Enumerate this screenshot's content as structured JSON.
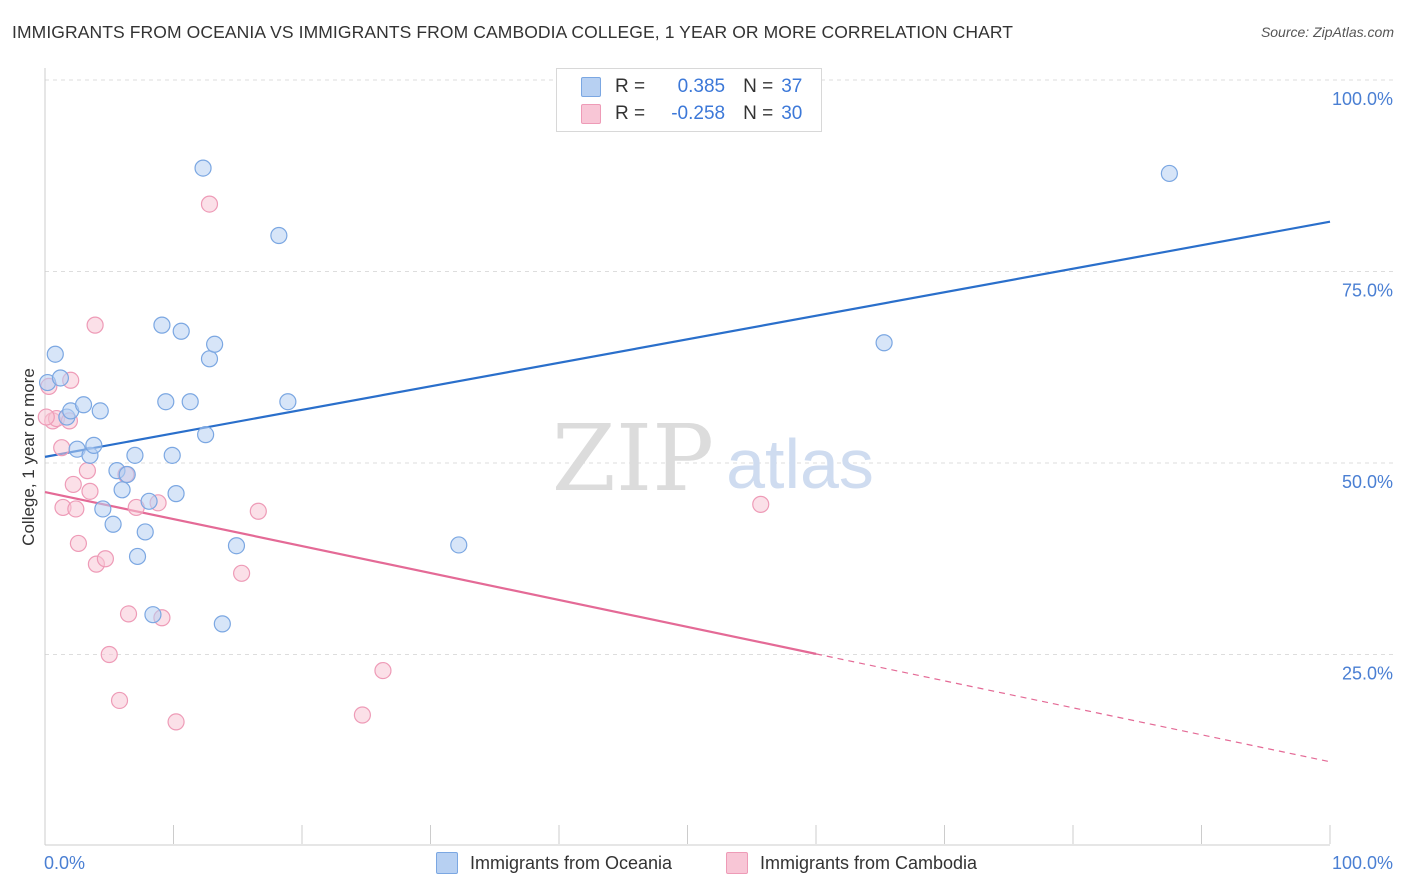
{
  "title": "IMMIGRANTS FROM OCEANIA VS IMMIGRANTS FROM CAMBODIA COLLEGE, 1 YEAR OR MORE CORRELATION CHART",
  "source": "Source: ZipAtlas.com",
  "legend": {
    "r_label": "R =",
    "n_label": "N =",
    "series": [
      {
        "name": "Immigrants from Oceania",
        "r": "0.385",
        "n": "37"
      },
      {
        "name": "Immigrants from Cambodia",
        "r": "-0.258",
        "n": "30"
      }
    ]
  },
  "colors": {
    "oceania_fill": "#b7d0f2",
    "oceania_stroke": "#7ba7e2",
    "oceania_line": "#2a6fcb",
    "cambodia_fill": "#f8c6d6",
    "cambodia_stroke": "#ee9bb7",
    "cambodia_line": "#e46a96",
    "axis_text": "#4a7fd3"
  },
  "chart_data": {
    "type": "scatter",
    "title": "IMMIGRANTS FROM OCEANIA VS IMMIGRANTS FROM CAMBODIA COLLEGE, 1 YEAR OR MORE CORRELATION CHART",
    "xlabel": "",
    "ylabel": "College, 1 year or more",
    "xlim": [
      0,
      100
    ],
    "ylim": [
      0,
      100
    ],
    "x_tick_labels": [
      "0.0%",
      "100.0%"
    ],
    "y_ticks": [
      25,
      50,
      75,
      100
    ],
    "y_tick_labels": [
      "25.0%",
      "50.0%",
      "75.0%",
      "100.0%"
    ],
    "grid": true,
    "legend_position": "top-center",
    "watermark": "ZIPatlas",
    "series": [
      {
        "name": "Immigrants from Oceania",
        "r": 0.385,
        "n": 37,
        "points": [
          [
            0.2,
            60.5
          ],
          [
            0.8,
            64.2
          ],
          [
            1.2,
            61.1
          ],
          [
            1.7,
            56.0
          ],
          [
            2.0,
            56.8
          ],
          [
            2.5,
            51.8
          ],
          [
            3.0,
            57.6
          ],
          [
            3.5,
            51.0
          ],
          [
            3.8,
            52.3
          ],
          [
            4.3,
            56.8
          ],
          [
            4.5,
            44.0
          ],
          [
            5.3,
            42.0
          ],
          [
            5.6,
            49.0
          ],
          [
            6.0,
            46.5
          ],
          [
            6.4,
            48.5
          ],
          [
            7.0,
            51.0
          ],
          [
            7.2,
            37.8
          ],
          [
            7.8,
            41.0
          ],
          [
            8.1,
            45.0
          ],
          [
            8.4,
            30.2
          ],
          [
            9.1,
            68.0
          ],
          [
            9.4,
            58.0
          ],
          [
            9.9,
            51.0
          ],
          [
            10.2,
            46.0
          ],
          [
            10.6,
            67.2
          ],
          [
            11.3,
            58.0
          ],
          [
            12.3,
            88.5
          ],
          [
            12.5,
            53.7
          ],
          [
            12.8,
            63.6
          ],
          [
            13.2,
            65.5
          ],
          [
            13.8,
            29.0
          ],
          [
            14.9,
            39.2
          ],
          [
            18.2,
            79.7
          ],
          [
            18.9,
            58.0
          ],
          [
            32.2,
            39.3
          ],
          [
            65.3,
            65.7
          ],
          [
            87.5,
            87.8
          ]
        ],
        "trend": {
          "x": [
            0,
            100
          ],
          "y": [
            50.8,
            81.5
          ]
        }
      },
      {
        "name": "Immigrants from Cambodia",
        "r": -0.258,
        "n": 30,
        "points": [
          [
            0.3,
            60.0
          ],
          [
            0.6,
            55.5
          ],
          [
            0.9,
            55.8
          ],
          [
            1.3,
            52.0
          ],
          [
            1.4,
            44.2
          ],
          [
            1.9,
            55.5
          ],
          [
            2.0,
            60.8
          ],
          [
            2.2,
            47.2
          ],
          [
            2.4,
            44.0
          ],
          [
            2.6,
            39.5
          ],
          [
            3.3,
            49.0
          ],
          [
            3.5,
            46.3
          ],
          [
            3.9,
            68.0
          ],
          [
            4.0,
            36.8
          ],
          [
            4.7,
            37.5
          ],
          [
            5.0,
            25.0
          ],
          [
            5.8,
            19.0
          ],
          [
            6.3,
            48.5
          ],
          [
            6.5,
            30.3
          ],
          [
            7.1,
            44.2
          ],
          [
            8.8,
            44.8
          ],
          [
            9.1,
            29.8
          ],
          [
            10.2,
            16.2
          ],
          [
            12.8,
            83.8
          ],
          [
            15.3,
            35.6
          ],
          [
            16.6,
            43.7
          ],
          [
            24.7,
            17.1
          ],
          [
            26.3,
            22.9
          ],
          [
            55.7,
            44.6
          ],
          [
            0.1,
            56.0
          ]
        ],
        "trend": {
          "x": [
            0,
            100
          ],
          "y": [
            46.2,
            11.0
          ],
          "solid_until_x": 60
        }
      }
    ]
  }
}
